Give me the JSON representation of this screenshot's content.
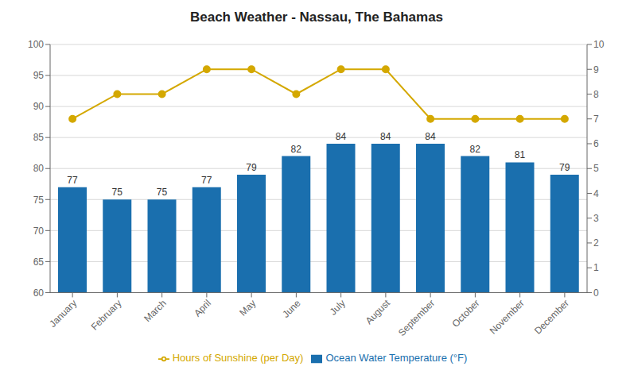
{
  "chart_data": {
    "type": "bar",
    "title": "Beach Weather - Nassau, The Bahamas",
    "categories": [
      "January",
      "February",
      "March",
      "April",
      "May",
      "June",
      "July",
      "August",
      "September",
      "October",
      "November",
      "December"
    ],
    "series": [
      {
        "name": "Ocean Water Temperature (°F)",
        "type": "bar",
        "color": "#1a6fae",
        "data_labels": true,
        "values": [
          77,
          75,
          75,
          77,
          79,
          82,
          84,
          84,
          84,
          82,
          81,
          79
        ]
      },
      {
        "name": "Hours of Sunshine (per Day)",
        "type": "line",
        "color": "#d4a800",
        "marker": "circle",
        "axis": "y2",
        "values": [
          7.0,
          8.0,
          8.0,
          9.0,
          9.0,
          8.0,
          9.0,
          9.0,
          7.0,
          7.0,
          7.0,
          7.0
        ]
      }
    ],
    "ylim": [
      60,
      100
    ],
    "yticks": [
      60,
      65,
      70,
      75,
      80,
      85,
      90,
      95,
      100
    ],
    "y2lim": [
      0,
      10
    ],
    "y2ticks": [
      0,
      1,
      2,
      3,
      4,
      5,
      6,
      7,
      8,
      9,
      10
    ],
    "grid": true,
    "legend": "bottom"
  }
}
